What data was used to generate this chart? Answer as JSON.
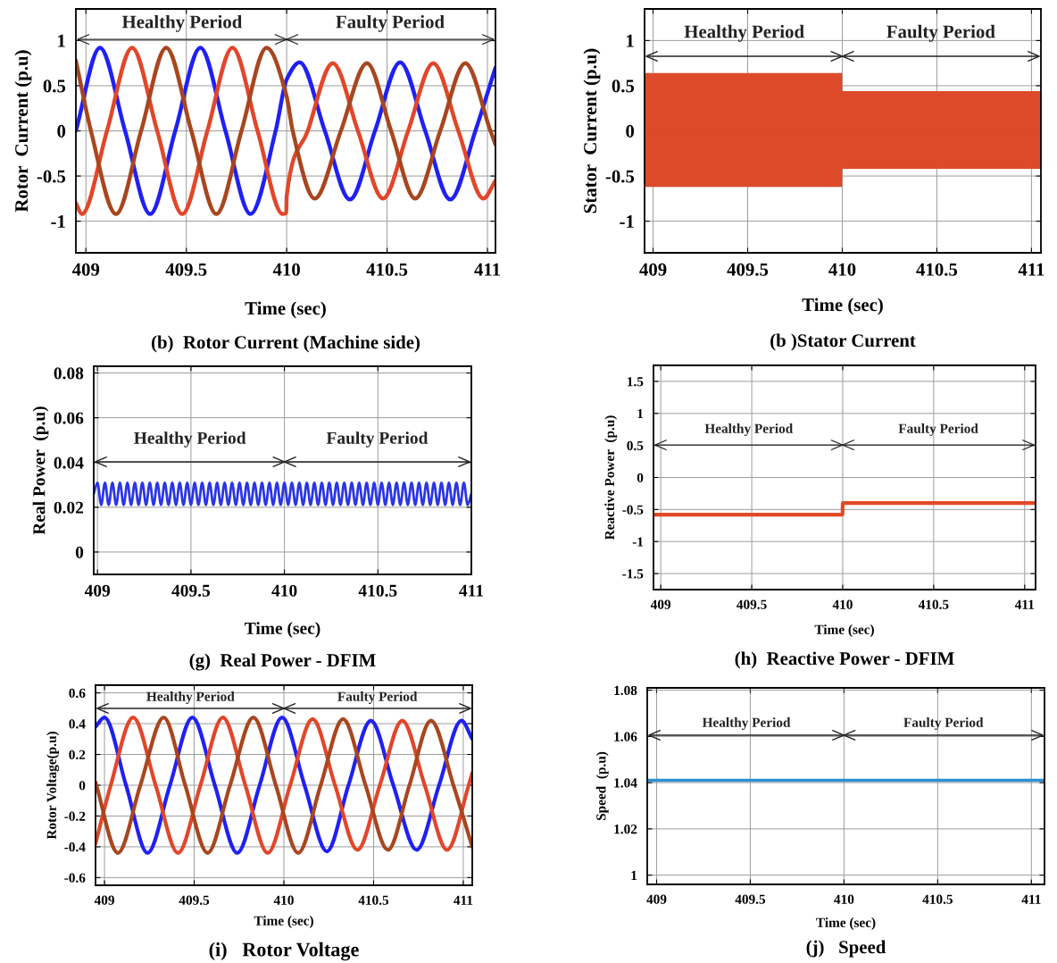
{
  "chart_data": [
    {
      "type": "line",
      "title": "(b)  Rotor Current (Machine side)",
      "xlabel": "Time (sec)",
      "ylabel": "Rotor  Current (p.u)",
      "xlim": [
        408.95,
        411.04
      ],
      "ylim": [
        -1.35,
        1.35
      ],
      "xticks": [
        409,
        409.5,
        410,
        410.5,
        411
      ],
      "yticks": [
        -1,
        -0.5,
        0,
        0.5,
        1
      ],
      "grid": true,
      "annotations": [
        "Healthy Period",
        "Faulty Period"
      ],
      "series": [
        {
          "color": "#2020f5",
          "x": [
            408.95,
            409.07,
            409.195,
            409.32,
            409.445,
            409.57,
            409.695,
            409.82,
            409.945,
            410.0,
            410.065,
            410.19,
            410.315,
            410.44,
            410.565,
            410.69,
            410.815,
            410.94,
            411.04
          ],
          "values": [
            0,
            0.92,
            0,
            -0.92,
            0,
            0.92,
            0,
            -0.92,
            0,
            0.57,
            0.76,
            0,
            -0.76,
            0,
            0.76,
            0,
            -0.76,
            0,
            0.7
          ]
        },
        {
          "color": "#e2462a",
          "x": [
            408.95,
            408.98,
            409.105,
            409.23,
            409.355,
            409.48,
            409.605,
            409.73,
            409.855,
            409.98,
            409.998,
            410.0,
            410.105,
            410.23,
            410.355,
            410.48,
            410.605,
            410.73,
            410.855,
            410.98,
            411.04
          ],
          "values": [
            -0.8,
            -0.92,
            0,
            0.92,
            0,
            -0.92,
            0,
            0.92,
            0,
            -0.92,
            -0.91,
            -0.72,
            0,
            0.75,
            0,
            -0.75,
            0,
            0.75,
            0,
            -0.75,
            -0.55
          ]
        },
        {
          "color": "#a8461f",
          "x": [
            408.95,
            409.025,
            409.15,
            409.275,
            409.4,
            409.525,
            409.65,
            409.775,
            409.9,
            410.0,
            410.03,
            410.14,
            410.27,
            410.4,
            410.52,
            410.64,
            410.765,
            410.89,
            411.015,
            411.04
          ],
          "values": [
            0.78,
            0,
            -0.92,
            0,
            0.92,
            0,
            -0.92,
            0,
            0.92,
            0.38,
            0,
            -0.75,
            0,
            0.75,
            0,
            -0.75,
            0,
            0.75,
            0,
            -0.15
          ]
        }
      ]
    },
    {
      "type": "line",
      "title": "(b )Stator Current",
      "xlabel": "Time (sec)",
      "ylabel": "Stator  Current (p.u)",
      "xlim": [
        408.955,
        411.05
      ],
      "ylim": [
        -1.35,
        1.35
      ],
      "xticks": [
        409,
        409.5,
        410,
        410.5,
        411
      ],
      "yticks": [
        -1,
        -0.5,
        0,
        0.5,
        1
      ],
      "grid": true,
      "annotations": [
        "Healthy Period",
        "Faulty Period"
      ],
      "series": [
        {
          "color": "#dc4a2a",
          "x": [
            408.955,
            409.999,
            410.0,
            411.05
          ],
          "values": [
            0,
            0,
            0,
            0
          ],
          "lower": [
            -0.62,
            -0.62,
            -0.42,
            -0.42
          ],
          "upper": [
            0.64,
            0.64,
            0.44,
            0.44
          ]
        }
      ]
    },
    {
      "type": "line",
      "title": "(g)  Real Power - DFIM",
      "xlabel": "Time (sec)",
      "ylabel": "Real Power  (p.u)",
      "xlim": [
        408.98,
        411.0
      ],
      "ylim": [
        -0.01,
        0.083
      ],
      "xticks": [
        409,
        409.5,
        410,
        410.5,
        411
      ],
      "yticks": [
        0,
        0.02,
        0.04,
        0.06,
        0.08
      ],
      "grid": true,
      "annotations": [
        "Healthy Period",
        "Faulty Period"
      ],
      "series": [
        {
          "color": "#2a36e6",
          "x": [
            408.98,
            409.0,
            409.02,
            409.04,
            409.06,
            409.08,
            409.1,
            409.12,
            409.14,
            409.16,
            409.18,
            409.2,
            409.22,
            409.24,
            409.26,
            409.28,
            409.3,
            409.32,
            409.34,
            409.36,
            409.38,
            409.4,
            409.42,
            409.44,
            409.46,
            409.48,
            409.5,
            409.52,
            409.54,
            409.56,
            409.58,
            409.6,
            409.62,
            409.64,
            409.66,
            409.68,
            409.7,
            409.72,
            409.74,
            409.76,
            409.78,
            409.8,
            409.82,
            409.84,
            409.86,
            409.88,
            409.9,
            409.92,
            409.94,
            409.96,
            409.98,
            410.0,
            410.02,
            410.04,
            410.06,
            410.08,
            410.1,
            410.12,
            410.14,
            410.16,
            410.18,
            410.2,
            410.22,
            410.24,
            410.26,
            410.28,
            410.3,
            410.32,
            410.34,
            410.36,
            410.38,
            410.4,
            410.42,
            410.44,
            410.46,
            410.48,
            410.5,
            410.52,
            410.54,
            410.56,
            410.58,
            410.6,
            410.62,
            410.64,
            410.66,
            410.68,
            410.7,
            410.72,
            410.74,
            410.76,
            410.78,
            410.8,
            410.82,
            410.84,
            410.86,
            410.88,
            410.9,
            410.92,
            410.94,
            410.96,
            410.98,
            411.0
          ],
          "values": [
            0.026,
            0.031,
            0.021,
            0.031,
            0.021,
            0.031,
            0.021,
            0.031,
            0.021,
            0.031,
            0.021,
            0.031,
            0.021,
            0.031,
            0.021,
            0.031,
            0.021,
            0.031,
            0.021,
            0.031,
            0.021,
            0.031,
            0.021,
            0.031,
            0.021,
            0.031,
            0.021,
            0.031,
            0.021,
            0.031,
            0.021,
            0.031,
            0.021,
            0.031,
            0.021,
            0.031,
            0.021,
            0.031,
            0.021,
            0.031,
            0.021,
            0.031,
            0.021,
            0.031,
            0.021,
            0.031,
            0.021,
            0.031,
            0.021,
            0.031,
            0.021,
            0.031,
            0.021,
            0.031,
            0.021,
            0.031,
            0.021,
            0.031,
            0.021,
            0.031,
            0.021,
            0.031,
            0.021,
            0.031,
            0.021,
            0.031,
            0.021,
            0.031,
            0.021,
            0.031,
            0.021,
            0.031,
            0.021,
            0.031,
            0.021,
            0.031,
            0.021,
            0.031,
            0.021,
            0.031,
            0.021,
            0.031,
            0.021,
            0.031,
            0.021,
            0.031,
            0.021,
            0.031,
            0.021,
            0.031,
            0.021,
            0.031,
            0.021,
            0.031,
            0.021,
            0.031,
            0.021,
            0.031,
            0.021,
            0.031,
            0.021,
            0.026
          ]
        }
      ]
    },
    {
      "type": "line",
      "title": "(h)  Reactive Power - DFIM",
      "xlabel": "Time (sec)",
      "ylabel": "Reactive Power  (p.u)",
      "xlim": [
        408.96,
        411.06
      ],
      "ylim": [
        -1.75,
        1.75
      ],
      "xticks": [
        409,
        409.5,
        410,
        410.5,
        411
      ],
      "yticks": [
        -1.5,
        -1,
        -0.5,
        0,
        0.5,
        1,
        1.5
      ],
      "grid": true,
      "annotations": [
        "Healthy Period",
        "Faulty Period"
      ],
      "series": [
        {
          "color": "#e04a25",
          "x": [
            408.96,
            409.999,
            410.0,
            411.06
          ],
          "values": [
            -0.58,
            -0.58,
            -0.4,
            -0.4
          ]
        }
      ]
    },
    {
      "type": "line",
      "title": "(i)   Rotor Voltage",
      "xlabel": "Time (sec)",
      "ylabel": "Rotor Voltage(p.u)",
      "xlim": [
        408.95,
        411.05
      ],
      "ylim": [
        -0.65,
        0.65
      ],
      "xticks": [
        409,
        409.5,
        410,
        410.5,
        411
      ],
      "yticks": [
        -0.6,
        -0.4,
        -0.2,
        0,
        0.2,
        0.4,
        0.6
      ],
      "grid": true,
      "annotations": [
        "Healthy Period",
        "Faulty Period"
      ],
      "series": [
        {
          "color": "#2020f5",
          "x": [
            408.95,
            409.0,
            409.12,
            409.24,
            409.365,
            409.49,
            409.615,
            409.74,
            409.865,
            409.99,
            410.115,
            410.24,
            410.36,
            410.485,
            410.61,
            410.74,
            410.865,
            410.99,
            411.05
          ],
          "values": [
            0.38,
            0.44,
            0,
            -0.44,
            0,
            0.44,
            0,
            -0.44,
            0,
            0.44,
            0,
            -0.43,
            0,
            0.42,
            0,
            -0.42,
            0,
            0.42,
            0.3
          ]
        },
        {
          "color": "#e2462a",
          "x": [
            408.95,
            409.035,
            409.16,
            409.285,
            409.41,
            409.535,
            409.66,
            409.785,
            409.91,
            410.035,
            410.16,
            410.285,
            410.41,
            410.535,
            410.66,
            410.785,
            410.91,
            411.03,
            411.05
          ],
          "values": [
            -0.38,
            0,
            0.44,
            0,
            -0.44,
            0,
            0.44,
            0,
            -0.44,
            0,
            0.43,
            0,
            -0.42,
            0,
            0.42,
            0,
            -0.42,
            0,
            0.08
          ]
        },
        {
          "color": "#a8461f",
          "x": [
            408.95,
            409.075,
            409.2,
            409.33,
            409.45,
            409.575,
            409.7,
            409.83,
            409.955,
            410.08,
            410.205,
            410.33,
            410.455,
            410.58,
            410.7,
            410.82,
            410.945,
            411.05
          ],
          "values": [
            0.02,
            -0.44,
            0,
            0.44,
            0,
            -0.44,
            0,
            0.44,
            0,
            -0.44,
            0,
            0.43,
            0,
            -0.42,
            0,
            0.42,
            0,
            -0.4
          ]
        }
      ]
    },
    {
      "type": "line",
      "title": "(j)   Speed",
      "xlabel": "Time (sec)",
      "ylabel": "Speed  (p.u)",
      "xlim": [
        408.95,
        411.07
      ],
      "ylim": [
        0.996,
        1.081
      ],
      "xticks": [
        409,
        409.5,
        410,
        410.5,
        411
      ],
      "yticks": [
        1,
        1.02,
        1.04,
        1.06,
        1.08
      ],
      "grid": true,
      "annotations": [
        "Healthy Period",
        "Faulty Period"
      ],
      "series": [
        {
          "color": "#2b8fd1",
          "x": [
            408.95,
            411.07
          ],
          "values": [
            1.041,
            1.041
          ]
        }
      ]
    }
  ]
}
